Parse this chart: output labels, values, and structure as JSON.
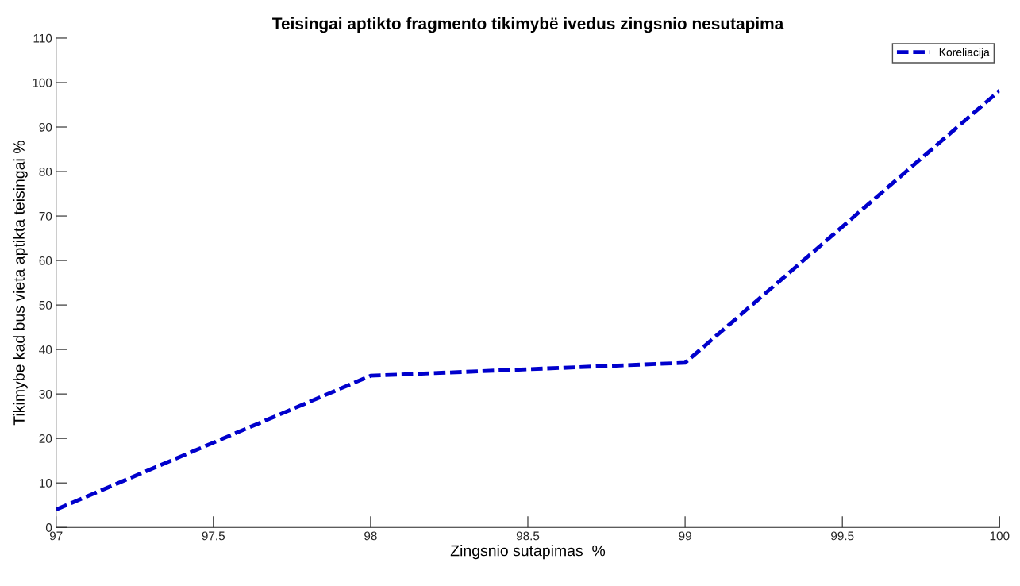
{
  "chart_data": {
    "type": "line",
    "title": "Teisingai aptikto fragmento tikimybë ivedus zingsnio nesutapima",
    "xlabel": "Zingsnio sutapimas  %",
    "ylabel": "Tikimybe kad bus vieta aptikta teisingai %",
    "x": [
      97,
      98,
      99,
      100
    ],
    "series": [
      {
        "name": "Koreliacija",
        "color": "#0000cc",
        "values": [
          4.0,
          34.1,
          37.0,
          98.2
        ]
      }
    ],
    "xlim": [
      97,
      100
    ],
    "xticks": [
      97,
      97.5,
      98,
      98.5,
      99,
      99.5,
      100
    ],
    "ylim": [
      0,
      110
    ],
    "yticks": [
      0,
      10,
      20,
      30,
      40,
      50,
      60,
      70,
      80,
      90,
      100,
      110
    ],
    "grid": false,
    "legend": "top right",
    "line_style": "dashed",
    "marker": "none"
  }
}
